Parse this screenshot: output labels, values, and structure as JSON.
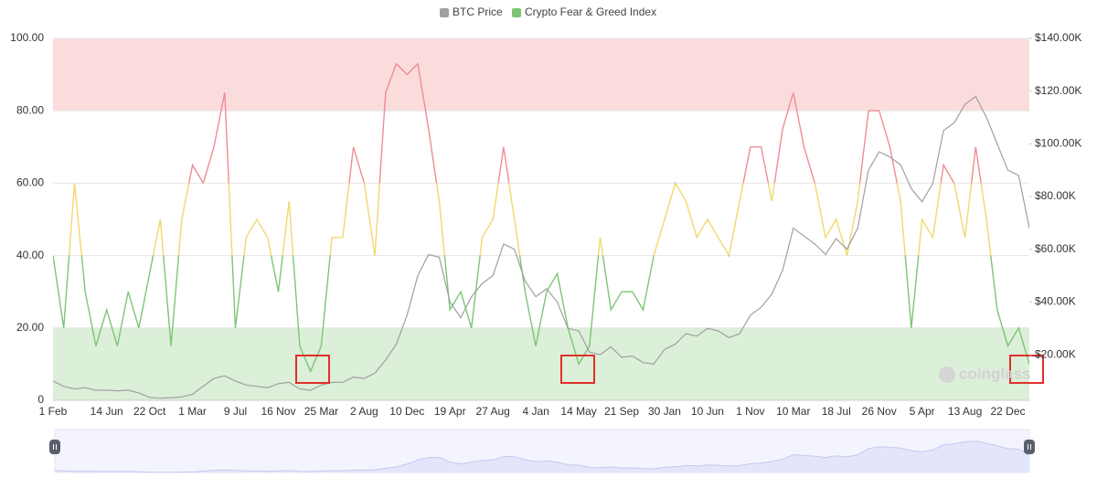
{
  "chart_data": {
    "type": "line",
    "watermark": "coinglass",
    "categories": [
      "1 Feb",
      null,
      null,
      null,
      null,
      "14 Jun",
      null,
      null,
      null,
      "22 Oct",
      null,
      null,
      null,
      "1 Mar",
      null,
      null,
      null,
      "9 Jul",
      null,
      null,
      null,
      "16 Nov",
      null,
      null,
      null,
      "25 Mar",
      null,
      null,
      null,
      "2 Aug",
      null,
      null,
      null,
      "10 Dec",
      null,
      null,
      null,
      "19 Apr",
      null,
      null,
      null,
      "27 Aug",
      null,
      null,
      null,
      "4 Jan",
      null,
      null,
      null,
      "14 May",
      null,
      null,
      null,
      "21 Sep",
      null,
      null,
      null,
      "30 Jan",
      null,
      null,
      null,
      "10 Jun",
      null,
      null,
      null,
      "1 Nov",
      null,
      null,
      null,
      "10 Mar",
      null,
      null,
      null,
      "18 Jul",
      null,
      null,
      null,
      "26 Nov",
      null,
      null,
      null,
      "5 Apr",
      null,
      null,
      null,
      "13 Aug",
      null,
      null,
      null,
      "22 Dec",
      null,
      null
    ],
    "series": [
      {
        "name": "BTC Price",
        "color": "#a0a0a0",
        "axis": "y2",
        "values": [
          10000,
          8000,
          7000,
          7500,
          6500,
          6500,
          6300,
          6500,
          5500,
          3800,
          3500,
          3700,
          4000,
          5000,
          8000,
          11000,
          12000,
          10000,
          8500,
          8000,
          7500,
          9000,
          9500,
          7000,
          6500,
          8500,
          9500,
          9500,
          11500,
          11000,
          13000,
          18000,
          24000,
          35000,
          50000,
          58000,
          57000,
          40000,
          34000,
          42000,
          47000,
          50000,
          62000,
          60000,
          48000,
          42000,
          45000,
          40000,
          30000,
          29000,
          21000,
          20000,
          23000,
          19000,
          19500,
          17000,
          16500,
          22000,
          24000,
          28000,
          27000,
          30000,
          29000,
          26500,
          28000,
          35000,
          38000,
          43000,
          52000,
          68000,
          65000,
          62000,
          58000,
          64000,
          60000,
          68000,
          90000,
          97000,
          95000,
          92000,
          83000,
          78000,
          85000,
          105000,
          108000,
          115000,
          118000,
          110000,
          100000,
          90000,
          88000,
          68000
        ]
      },
      {
        "name": "Crypto Fear & Greed Index",
        "color": "#7cc576",
        "values": [
          40,
          20,
          60,
          30,
          15,
          25,
          15,
          30,
          20,
          35,
          50,
          15,
          50,
          65,
          60,
          70,
          85,
          20,
          45,
          50,
          45,
          30,
          55,
          15,
          8,
          15,
          45,
          45,
          70,
          60,
          40,
          85,
          93,
          90,
          93,
          75,
          55,
          25,
          30,
          20,
          45,
          50,
          70,
          50,
          30,
          15,
          30,
          35,
          20,
          10,
          15,
          45,
          25,
          30,
          30,
          25,
          40,
          50,
          60,
          55,
          45,
          50,
          45,
          40,
          55,
          70,
          70,
          55,
          75,
          85,
          70,
          60,
          45,
          50,
          40,
          55,
          80,
          80,
          70,
          55,
          20,
          50,
          45,
          65,
          60,
          45,
          70,
          50,
          25,
          15,
          20,
          10
        ]
      }
    ],
    "zones": [
      {
        "min": 60,
        "max": 100,
        "color": "#ee8d93"
      },
      {
        "min": 40,
        "max": 60,
        "color": "#f2d86e"
      },
      {
        "min": 0,
        "max": 40,
        "color": "#7cc576"
      }
    ],
    "bands": [
      {
        "min": 80,
        "max": 100,
        "color": "#fadcdc"
      },
      {
        "min": 0,
        "max": 20,
        "color": "#dcefd8"
      }
    ],
    "ylim": [
      0,
      100
    ],
    "yticks": [
      0,
      {
        "value": 20,
        "label": "20.00"
      },
      {
        "value": 40,
        "label": "40.00"
      },
      {
        "value": 60,
        "label": "60.00"
      },
      {
        "value": 80,
        "label": "80.00"
      },
      {
        "value": 100,
        "label": "100.00"
      }
    ],
    "y2lim": [
      2700,
      140000
    ],
    "y2ticks": [
      {
        "value": 20000,
        "label": "$20.00K"
      },
      {
        "value": 40000,
        "label": "$40.00K"
      },
      {
        "value": 60000,
        "label": "$60.00K"
      },
      {
        "value": 80000,
        "label": "$80.00K"
      },
      {
        "value": 100000,
        "label": "$100.00K"
      },
      {
        "value": 120000,
        "label": "$120.00K"
      },
      {
        "value": 140000,
        "label": "$140.00K"
      }
    ],
    "grid": true
  }
}
